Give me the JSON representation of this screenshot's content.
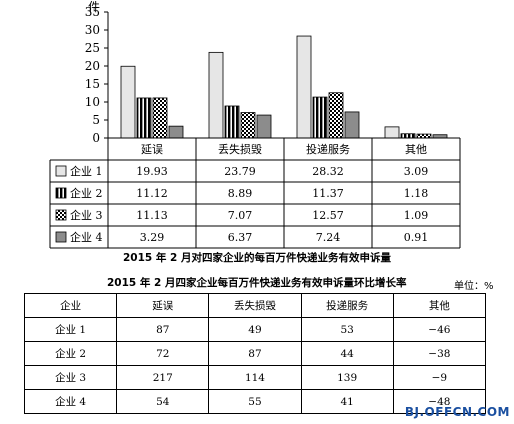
{
  "chart_data": {
    "type": "bar",
    "ylabel": "件",
    "ylim": [
      0,
      35
    ],
    "yticks": [
      "0",
      "5",
      "10",
      "15",
      "20",
      "25",
      "30",
      "35"
    ],
    "categories": [
      "延误",
      "丢失损毁",
      "投递服务",
      "其他"
    ],
    "series": [
      {
        "name": "企业 1",
        "values": [
          19.93,
          23.79,
          28.32,
          3.09
        ],
        "display": [
          "19.93",
          "23.79",
          "28.32",
          "3.09"
        ],
        "fill": "#e6e6e6",
        "pattern": "solid"
      },
      {
        "name": "企业 2",
        "values": [
          11.12,
          8.89,
          11.37,
          1.18
        ],
        "display": [
          "11.12",
          "8.89",
          "11.37",
          "1.18"
        ],
        "fill": "#000000",
        "pattern": "vertical-stripes"
      },
      {
        "name": "企业 3",
        "values": [
          11.13,
          7.07,
          12.57,
          1.09
        ],
        "display": [
          "11.13",
          "7.07",
          "12.57",
          "1.09"
        ],
        "fill": "#ffffff",
        "pattern": "checker"
      },
      {
        "name": "企业 4",
        "values": [
          3.29,
          6.37,
          7.24,
          0.91
        ],
        "display": [
          "3.29",
          "6.37",
          "7.24",
          "0.91"
        ],
        "fill": "#8c8c8c",
        "pattern": "solid"
      }
    ],
    "title": "2015 年 2 月对四家企业的每百万件快递业务有效申诉量",
    "legend": "data-table-below-axis"
  },
  "table": {
    "title": "2015 年 2 月四家企业每百万件快递业务有效申诉量环比增长率",
    "unit": "单位：%",
    "headers": [
      "企业",
      "延误",
      "丢失损毁",
      "投递服务",
      "其他"
    ],
    "rows": [
      [
        "企业 1",
        "87",
        "49",
        "53",
        "−46"
      ],
      [
        "企业 2",
        "72",
        "87",
        "44",
        "−38"
      ],
      [
        "企业 3",
        "217",
        "114",
        "139",
        "−9"
      ],
      [
        "企业 4",
        "54",
        "55",
        "41",
        "−48"
      ]
    ]
  },
  "watermark": "BJ.OFFCN.COM"
}
